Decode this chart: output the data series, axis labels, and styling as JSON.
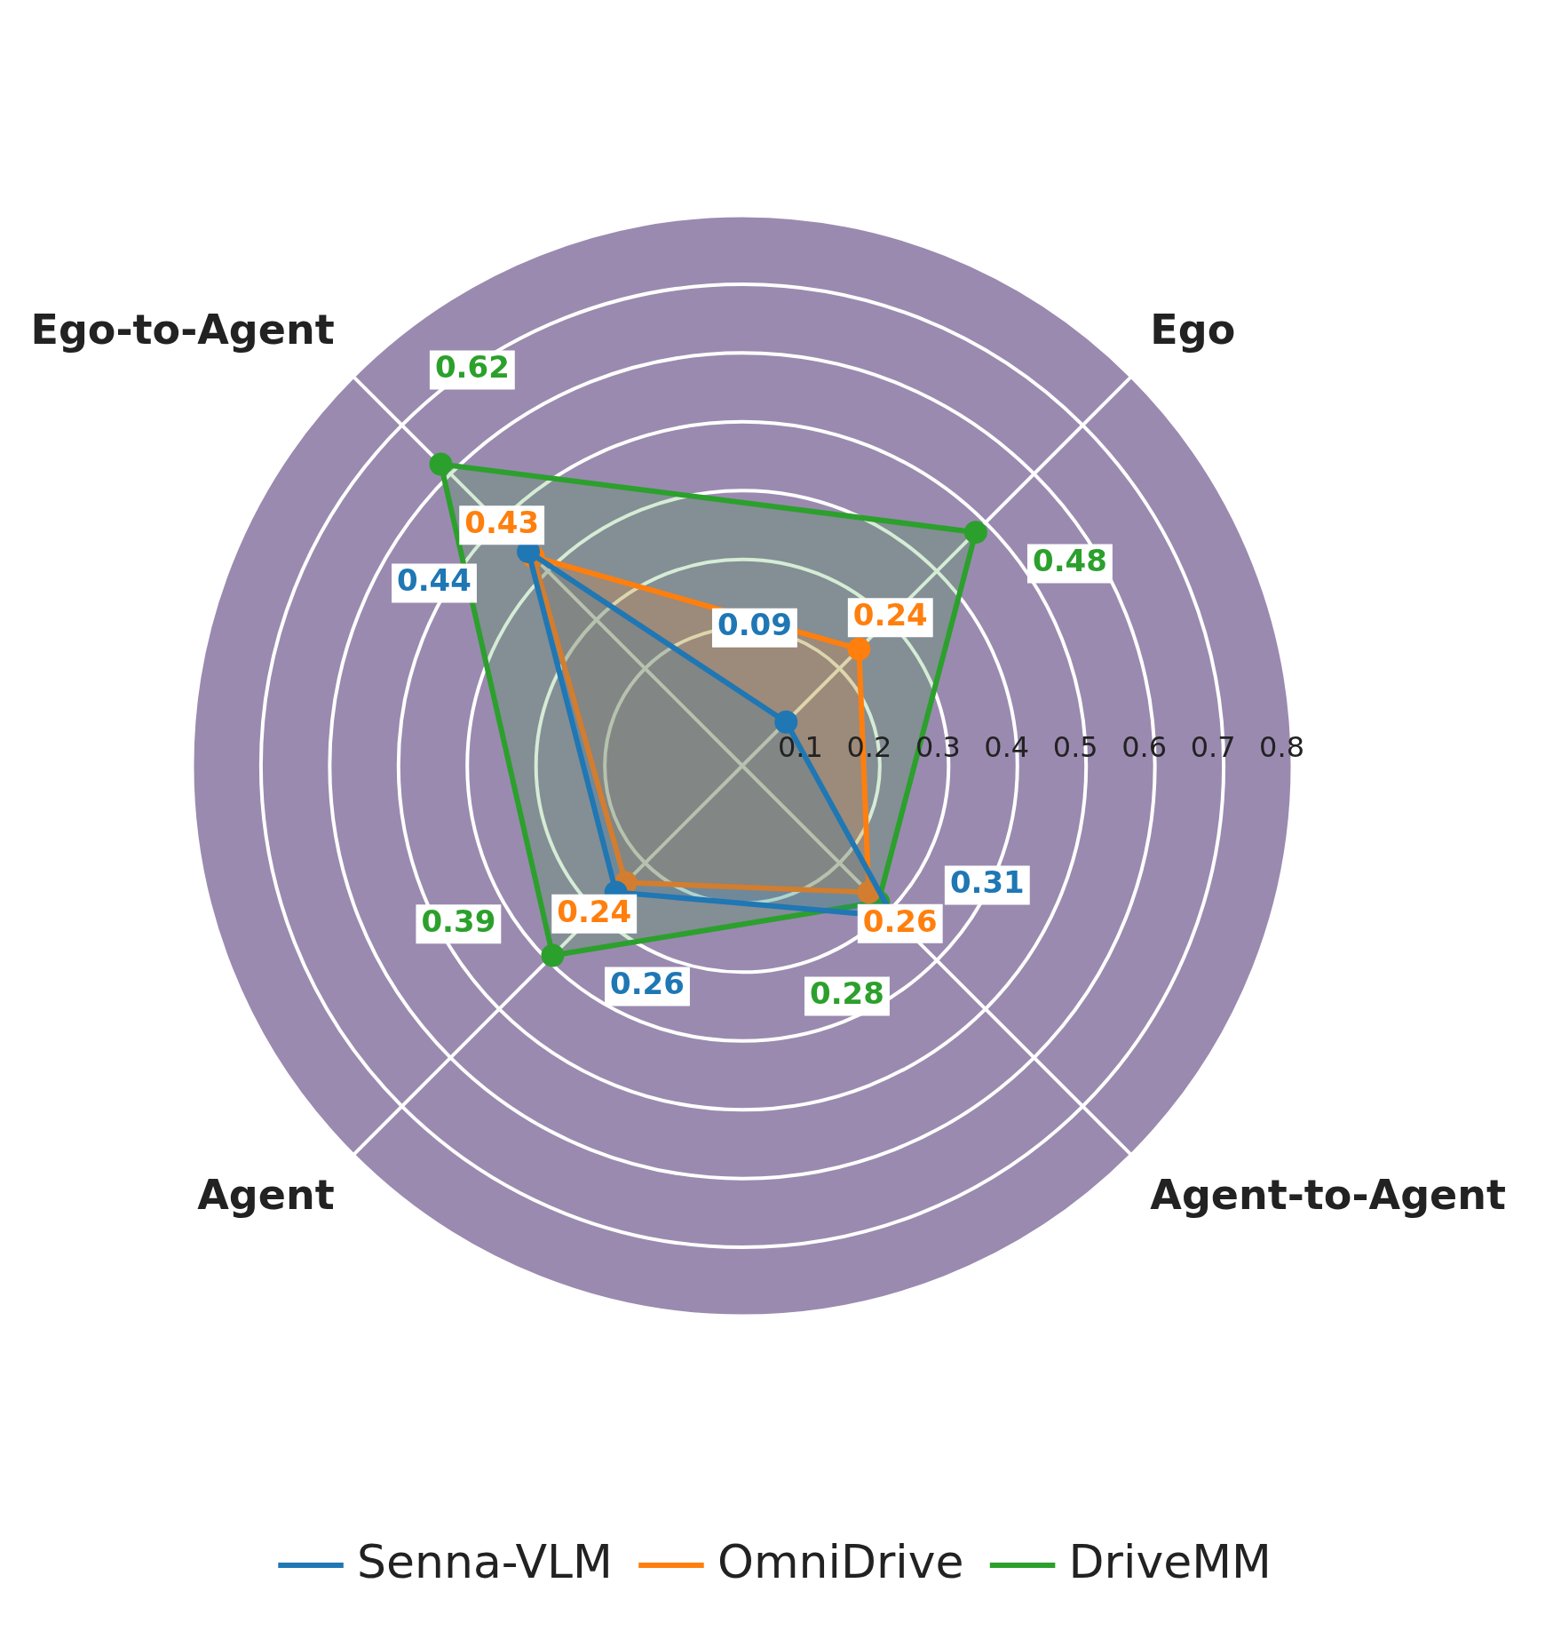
{
  "chart_data": {
    "type": "radar",
    "categories": [
      "Ego",
      "Agent-to-Agent",
      "Agent",
      "Ego-to-Agent"
    ],
    "series": [
      {
        "name": "Senna-VLM",
        "color": "#1f77b4",
        "values": [
          0.09,
          0.31,
          0.26,
          0.44
        ]
      },
      {
        "name": "OmniDrive",
        "color": "#ff7f0e",
        "values": [
          0.24,
          0.26,
          0.24,
          0.43
        ]
      },
      {
        "name": "DriveMM",
        "color": "#2ca02c",
        "values": [
          0.48,
          0.28,
          0.39,
          0.62
        ]
      }
    ],
    "ylim": [
      0,
      0.8
    ],
    "yticks": [
      0.1,
      0.2,
      0.3,
      0.4,
      0.5,
      0.6,
      0.7,
      0.8
    ],
    "grid": true,
    "legend": "bottom",
    "marker": "circle",
    "data_labels": true
  }
}
